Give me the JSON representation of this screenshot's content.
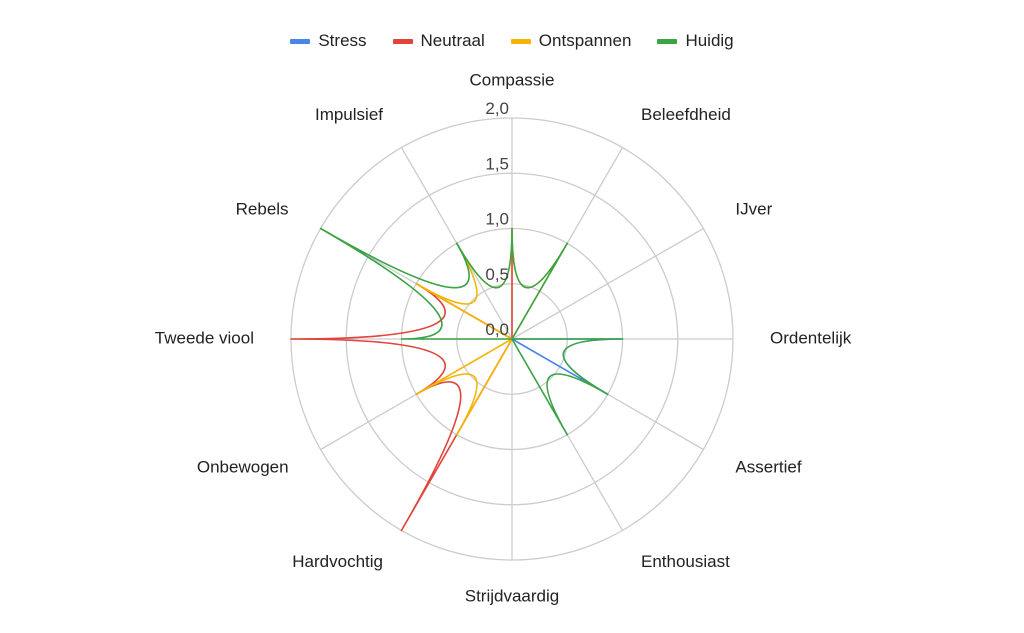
{
  "chart_data": {
    "type": "radar",
    "axes": [
      "Compassie",
      "Beleefdheid",
      "IJver",
      "Ordentelijk",
      "Assertief",
      "Enthousiast",
      "Strijdvaardig",
      "Hardvochtig",
      "Onbewogen",
      "Tweede viool",
      "Rebels",
      "Impulsief"
    ],
    "ticks": [
      "0,0",
      "0,5",
      "1,0",
      "1,5",
      "2,0"
    ],
    "rmax": 2.0,
    "rmin": 0.0,
    "grid": true,
    "legend_position": "top",
    "series": [
      {
        "name": "Stress",
        "color": "#4a86e8",
        "values": [
          0,
          0,
          0,
          1,
          1,
          0,
          0,
          0,
          0,
          0,
          0,
          0
        ]
      },
      {
        "name": "Neutraal",
        "color": "#e0443a",
        "values": [
          1,
          0,
          0,
          0,
          0,
          0,
          0,
          2,
          1,
          2,
          1,
          0
        ]
      },
      {
        "name": "Ontspannen",
        "color": "#f4b400",
        "values": [
          1,
          1,
          0,
          0,
          0,
          0,
          0,
          1,
          1,
          0,
          1,
          1
        ]
      },
      {
        "name": "Huidig",
        "color": "#3aa346",
        "values": [
          1,
          1,
          0,
          1,
          1,
          1,
          0,
          0,
          0,
          1,
          2,
          1
        ]
      }
    ]
  }
}
